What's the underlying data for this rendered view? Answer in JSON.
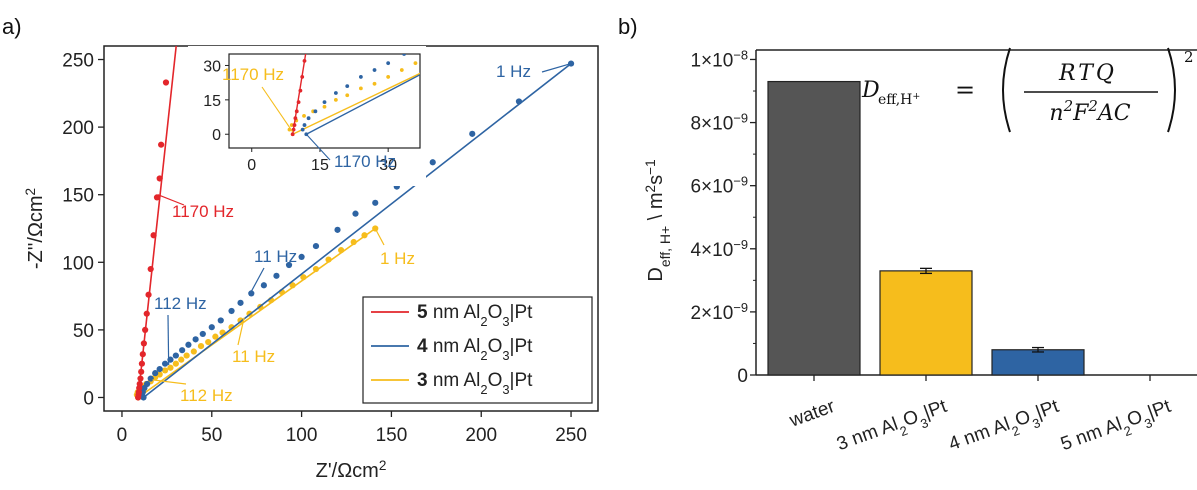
{
  "panel_a_label": "a)",
  "panel_b_label": "b)",
  "colors": {
    "red": "#e3262b",
    "blue": "#2e64a3",
    "yellow": "#f6bd1c",
    "gray": "#555555",
    "axis": "#222222"
  },
  "chart_data": [
    {
      "type": "scatter",
      "panel": "a",
      "xlabel": "Z'/Ωcm²",
      "ylabel": "-Z''/Ωcm²",
      "xlim": [
        -10,
        265
      ],
      "ylim": [
        -10,
        260
      ],
      "xticks": [
        0,
        50,
        100,
        150,
        200,
        250
      ],
      "yticks": [
        0,
        50,
        100,
        150,
        200,
        250
      ],
      "legend_position": "bottom-right",
      "series": [
        {
          "name": "5 nm Al₂O₃|Pt",
          "legend_bold": "5",
          "legend_rest": "nm Al₂O₃|Pt",
          "color": "#e3262b",
          "line": [
            [
              9,
              0
            ],
            [
              31,
              270
            ]
          ],
          "points": [
            [
              9,
              0
            ],
            [
              9.2,
              2
            ],
            [
              9.4,
              4
            ],
            [
              9.6,
              7
            ],
            [
              9.9,
              10
            ],
            [
              10.3,
              14
            ],
            [
              10.7,
              19
            ],
            [
              11.1,
              25
            ],
            [
              11.6,
              32
            ],
            [
              12.2,
              40
            ],
            [
              12.9,
              50
            ],
            [
              13.8,
              62
            ],
            [
              14.8,
              76
            ],
            [
              16.0,
              95
            ],
            [
              17.6,
              120
            ],
            [
              19.5,
              148
            ],
            [
              21.0,
              162
            ],
            [
              21.8,
              187
            ],
            [
              24.5,
              233
            ]
          ]
        },
        {
          "name": "4 nm Al₂O₃|Pt",
          "legend_bold": "4",
          "legend_rest": "nm Al₂O₃|Pt",
          "color": "#2e64a3",
          "line": [
            [
              12,
              0
            ],
            [
              250,
              247
            ]
          ],
          "points": [
            [
              12,
              0
            ],
            [
              11.2,
              2
            ],
            [
              11.6,
              4
            ],
            [
              12.5,
              7
            ],
            [
              14,
              10
            ],
            [
              16,
              14
            ],
            [
              18.5,
              18
            ],
            [
              21,
              21
            ],
            [
              24,
              25
            ],
            [
              27,
              28
            ],
            [
              30,
              31
            ],
            [
              33.5,
              35
            ],
            [
              37,
              39
            ],
            [
              41,
              43
            ],
            [
              45,
              47
            ],
            [
              50,
              52
            ],
            [
              55,
              57
            ],
            [
              61,
              64
            ],
            [
              66,
              70
            ],
            [
              72,
              77
            ],
            [
              79,
              83
            ],
            [
              86,
              90
            ],
            [
              93,
              98
            ],
            [
              100,
              104
            ],
            [
              108,
              112
            ],
            [
              120,
              124
            ],
            [
              130,
              136
            ],
            [
              141,
              144
            ],
            [
              153,
              156
            ],
            [
              173,
              174
            ],
            [
              195,
              195
            ],
            [
              221,
              219
            ],
            [
              250,
              247
            ]
          ]
        },
        {
          "name": "3 nm Al₂O₃|Pt",
          "legend_bold": "3",
          "legend_rest": "nm Al₂O₃|Pt",
          "color": "#f6bd1c",
          "line": [
            [
              9,
              0
            ],
            [
              141,
              125
            ]
          ],
          "points": [
            [
              9,
              0
            ],
            [
              8.3,
              2
            ],
            [
              8.8,
              4
            ],
            [
              9.8,
              6
            ],
            [
              11.5,
              8
            ],
            [
              13.5,
              10
            ],
            [
              16,
              12
            ],
            [
              18.5,
              15
            ],
            [
              21,
              17
            ],
            [
              24,
              20
            ],
            [
              27,
              22
            ],
            [
              30,
              25
            ],
            [
              33,
              28
            ],
            [
              36,
              31
            ],
            [
              40,
              34
            ],
            [
              44,
              38
            ],
            [
              48,
              41
            ],
            [
              52,
              45
            ],
            [
              56,
              48
            ],
            [
              61,
              52
            ],
            [
              66,
              57
            ],
            [
              71,
              62
            ],
            [
              77,
              67
            ],
            [
              83,
              72
            ],
            [
              89,
              78
            ],
            [
              95,
              83
            ],
            [
              101,
              89
            ],
            [
              108,
              95
            ],
            [
              115,
              102
            ],
            [
              122,
              109
            ],
            [
              129,
              115
            ],
            [
              135,
              120
            ],
            [
              141,
              125
            ]
          ]
        }
      ],
      "annotations": [
        {
          "text": "1170 Hz",
          "series": "red",
          "target": [
            20,
            150
          ]
        },
        {
          "text": "1 Hz",
          "series": "blue",
          "target": [
            250,
            247
          ]
        },
        {
          "text": "11 Hz",
          "series": "blue",
          "target": [
            71,
            76
          ]
        },
        {
          "text": "112 Hz",
          "series": "blue",
          "target": [
            26,
            24
          ]
        },
        {
          "text": "1 Hz",
          "series": "yellow",
          "target": [
            141,
            125
          ]
        },
        {
          "text": "11 Hz",
          "series": "yellow",
          "target": [
            68,
            59
          ]
        },
        {
          "text": "112 Hz",
          "series": "yellow",
          "target": [
            17,
            13
          ]
        }
      ],
      "inset": {
        "xlim": [
          -5,
          37
        ],
        "ylim": [
          -6,
          35
        ],
        "xticks": [
          0,
          15,
          30
        ],
        "yticks": [
          0,
          15,
          30
        ],
        "annotations": [
          {
            "text": "1170 Hz",
            "series": "yellow"
          },
          {
            "text": "1170 Hz",
            "series": "blue"
          }
        ]
      }
    },
    {
      "type": "bar",
      "panel": "b",
      "categories": [
        "water",
        "3 nm Al₂O₃|Pt",
        "4 nm Al₂O₃|Pt",
        "5 nm Al₂O₃|Pt"
      ],
      "values": [
        9.3e-09,
        3.3e-09,
        8e-10,
        0
      ],
      "errors": [
        0,
        8e-11,
        7e-11,
        0
      ],
      "bar_colors": [
        "#555555",
        "#f6bd1c",
        "#2e64a3",
        "#2e64a3"
      ],
      "ylabel": "D_eff, H+ \\ m²s⁻¹",
      "ylim": [
        0,
        1.03e-08
      ],
      "yticks": [
        0,
        2e-09,
        4e-09,
        6e-09,
        8e-09,
        1e-08
      ],
      "ytick_labels": [
        "0",
        "2×10⁻⁹",
        "4×10⁻⁹",
        "6×10⁻⁹",
        "8×10⁻⁹",
        "1×10⁻⁸"
      ],
      "formula": {
        "lhs": "D",
        "lhs_sub": "eff,H⁺",
        "eq": "=",
        "numerator": "RTQ",
        "denominator": "n²F²AC",
        "power": "2"
      }
    }
  ]
}
